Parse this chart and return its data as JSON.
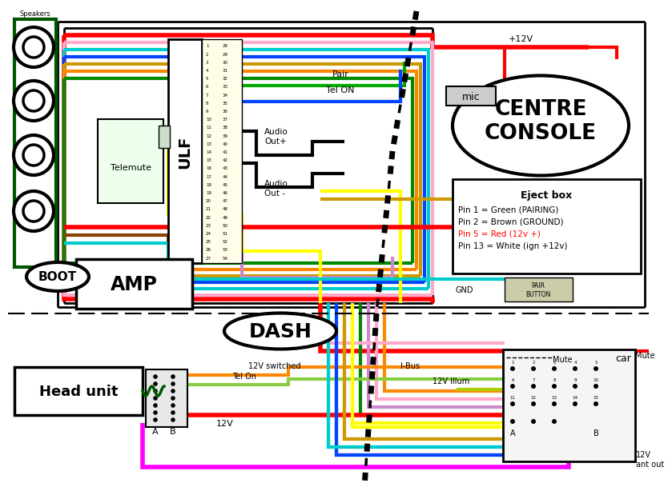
{
  "bg_color": "#ffffff",
  "wire_colors": {
    "red": "#ff0000",
    "green": "#008800",
    "blue": "#0044ff",
    "cyan": "#00cccc",
    "yellow": "#ffff00",
    "orange": "#ff8800",
    "pink": "#ffaacc",
    "purple": "#cc88cc",
    "brown": "#884400",
    "black": "#000000",
    "dark_green": "#005500",
    "light_blue": "#44aaff",
    "gold": "#cc9900",
    "magenta": "#ff00ff",
    "teal": "#00aaaa",
    "green_light": "#88cc44"
  },
  "labels": {
    "boot": "BOOT",
    "amp": "AMP",
    "ulf": "ULF",
    "telemute": "Telemute",
    "speakers": "Speakers",
    "centre_console": "CENTRE\nCONSOLE",
    "mic": "mic",
    "eject_box": "Eject box",
    "pin1": "Pin 1 = Green (PAIRING)",
    "pin2": "Pin 2 = Brown (GROUND)",
    "pin5": "Pin 5 = Red (12v +)",
    "pin13": "Pin 13 = White (ign +12v)",
    "dash": "DASH",
    "head_unit": "Head unit",
    "car": "car",
    "mute": "Mute",
    "pair": "Pair",
    "tel_on": "Tel ON",
    "audio_out_plus": "Audio\nOut+",
    "audio_out_minus": "Audio\nOut -",
    "plus12v": "+12V",
    "gnd": "GND",
    "pair_button": "PAIR\nBUTTON",
    "12v_switched": "12V switched",
    "i_bus": "I-Bus",
    "tel_on2": "Tel On",
    "12v": "12V",
    "12v_illum": "12V Illum",
    "12v_ant_out": "12V\nant out"
  }
}
